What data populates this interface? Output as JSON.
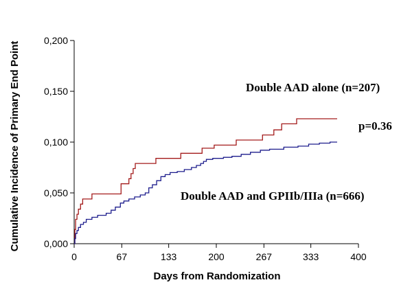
{
  "chart_data": {
    "type": "line",
    "title": "",
    "xlabel": "Days from Randomization",
    "ylabel": "Cumulative Incidence of Primary End Point",
    "xlim": [
      0,
      400
    ],
    "ylim": [
      0,
      0.2
    ],
    "x_ticks": [
      0,
      67,
      133,
      200,
      267,
      333,
      400
    ],
    "x_tick_labels": [
      "0",
      "67",
      "133",
      "200",
      "267",
      "333",
      "400"
    ],
    "y_ticks": [
      0,
      0.05,
      0.1,
      0.15,
      0.2
    ],
    "y_tick_labels": [
      "0,000",
      "0,050",
      "0,100",
      "0,150",
      "0,200"
    ],
    "grid": false,
    "legend": "none",
    "annotations": [
      {
        "text": "Double AAD alone (n=207)"
      },
      {
        "text": "p=0.36"
      },
      {
        "text": "Double AAD and GPIIb/IIIa (n=666)"
      }
    ],
    "series": [
      {
        "color": "#a31a1a",
        "step": true,
        "points": [
          [
            0,
            0
          ],
          [
            1,
            0.014
          ],
          [
            2,
            0.024
          ],
          [
            4,
            0.029
          ],
          [
            6,
            0.034
          ],
          [
            9,
            0.039
          ],
          [
            12,
            0.044
          ],
          [
            20,
            0.044
          ],
          [
            25,
            0.049
          ],
          [
            64,
            0.049
          ],
          [
            66,
            0.059
          ],
          [
            75,
            0.059
          ],
          [
            77,
            0.064
          ],
          [
            80,
            0.069
          ],
          [
            83,
            0.074
          ],
          [
            86,
            0.079
          ],
          [
            110,
            0.079
          ],
          [
            115,
            0.084
          ],
          [
            148,
            0.084
          ],
          [
            150,
            0.089
          ],
          [
            178,
            0.089
          ],
          [
            180,
            0.094
          ],
          [
            195,
            0.094
          ],
          [
            197,
            0.097
          ],
          [
            225,
            0.097
          ],
          [
            228,
            0.102
          ],
          [
            262,
            0.102
          ],
          [
            265,
            0.107
          ],
          [
            278,
            0.107
          ],
          [
            281,
            0.112
          ],
          [
            288,
            0.112
          ],
          [
            292,
            0.118
          ],
          [
            310,
            0.118
          ],
          [
            313,
            0.123
          ],
          [
            370,
            0.123
          ]
        ]
      },
      {
        "color": "#1c1c8c",
        "step": true,
        "points": [
          [
            0,
            0
          ],
          [
            1,
            0.005
          ],
          [
            2,
            0.01
          ],
          [
            4,
            0.013
          ],
          [
            6,
            0.016
          ],
          [
            9,
            0.019
          ],
          [
            13,
            0.021
          ],
          [
            17,
            0.024
          ],
          [
            25,
            0.026
          ],
          [
            33,
            0.028
          ],
          [
            45,
            0.03
          ],
          [
            52,
            0.033
          ],
          [
            58,
            0.036
          ],
          [
            65,
            0.04
          ],
          [
            70,
            0.042
          ],
          [
            77,
            0.044
          ],
          [
            85,
            0.046
          ],
          [
            93,
            0.048
          ],
          [
            100,
            0.05
          ],
          [
            105,
            0.055
          ],
          [
            110,
            0.058
          ],
          [
            116,
            0.062
          ],
          [
            122,
            0.066
          ],
          [
            128,
            0.068
          ],
          [
            135,
            0.07
          ],
          [
            145,
            0.071
          ],
          [
            155,
            0.073
          ],
          [
            165,
            0.075
          ],
          [
            172,
            0.077
          ],
          [
            178,
            0.079
          ],
          [
            182,
            0.081
          ],
          [
            186,
            0.083
          ],
          [
            195,
            0.084
          ],
          [
            210,
            0.085
          ],
          [
            222,
            0.086
          ],
          [
            235,
            0.088
          ],
          [
            248,
            0.09
          ],
          [
            262,
            0.092
          ],
          [
            275,
            0.093
          ],
          [
            295,
            0.095
          ],
          [
            315,
            0.096
          ],
          [
            330,
            0.098
          ],
          [
            345,
            0.099
          ],
          [
            360,
            0.1
          ],
          [
            370,
            0.1
          ]
        ]
      }
    ]
  }
}
